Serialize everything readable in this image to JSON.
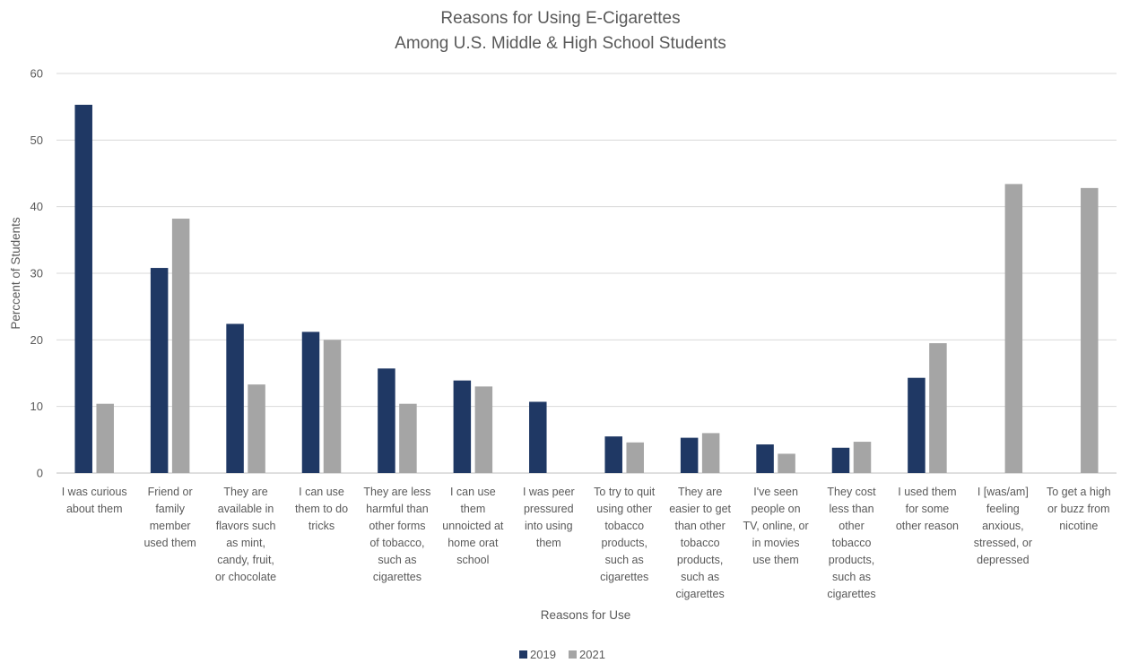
{
  "chart_data": {
    "type": "bar",
    "title": [
      "Reasons for Using E-Cigarettes",
      "Among U.S. Middle & High School Students"
    ],
    "xlabel": "Reasons for Use",
    "ylabel": "Perccent of Students",
    "ylim": [
      0,
      60
    ],
    "yticks": [
      0,
      10,
      20,
      30,
      40,
      50,
      60
    ],
    "grid": true,
    "legend_position": "bottom",
    "categories": [
      [
        "I was curious",
        "about them"
      ],
      [
        "Friend or",
        "family",
        "member",
        "used them"
      ],
      [
        "They are",
        "available in",
        "flavors such",
        "as mint,",
        "candy, fruit,",
        "or chocolate"
      ],
      [
        "I can use",
        "them to do",
        "tricks"
      ],
      [
        "They are less",
        "harmful than",
        "other forms",
        "of tobacco,",
        "such as",
        "cigarettes"
      ],
      [
        "I can use",
        "them",
        "unnoicted at",
        "home orat",
        "school"
      ],
      [
        "I was peer",
        "pressured",
        "into using",
        "them"
      ],
      [
        "To try to quit",
        "using other",
        "tobacco",
        "products,",
        "such as",
        "cigarettes"
      ],
      [
        "They are",
        "easier to get",
        "than other",
        "tobacco",
        "products,",
        "such as",
        "cigarettes"
      ],
      [
        "I've seen",
        "people on",
        "TV, online, or",
        "in movies",
        "use them"
      ],
      [
        "They cost",
        "less than",
        "other",
        "tobacco",
        "products,",
        "such as",
        "cigarettes"
      ],
      [
        "I used them",
        "for some",
        "other reason"
      ],
      [
        "I [was/am]",
        "feeling",
        "anxious,",
        "stressed, or",
        "depressed"
      ],
      [
        "To get a high",
        "or buzz from",
        "nicotine"
      ]
    ],
    "series": [
      {
        "name": "2019",
        "color": "#1f3864",
        "values": [
          55.3,
          30.8,
          22.4,
          21.2,
          15.7,
          13.9,
          10.7,
          5.5,
          5.3,
          4.3,
          3.8,
          14.3,
          null,
          null
        ]
      },
      {
        "name": "2021",
        "color": "#a5a5a5",
        "values": [
          10.4,
          38.2,
          13.3,
          20.0,
          10.4,
          13.0,
          null,
          4.6,
          6.0,
          2.9,
          4.7,
          19.5,
          43.4,
          42.8
        ]
      }
    ]
  }
}
